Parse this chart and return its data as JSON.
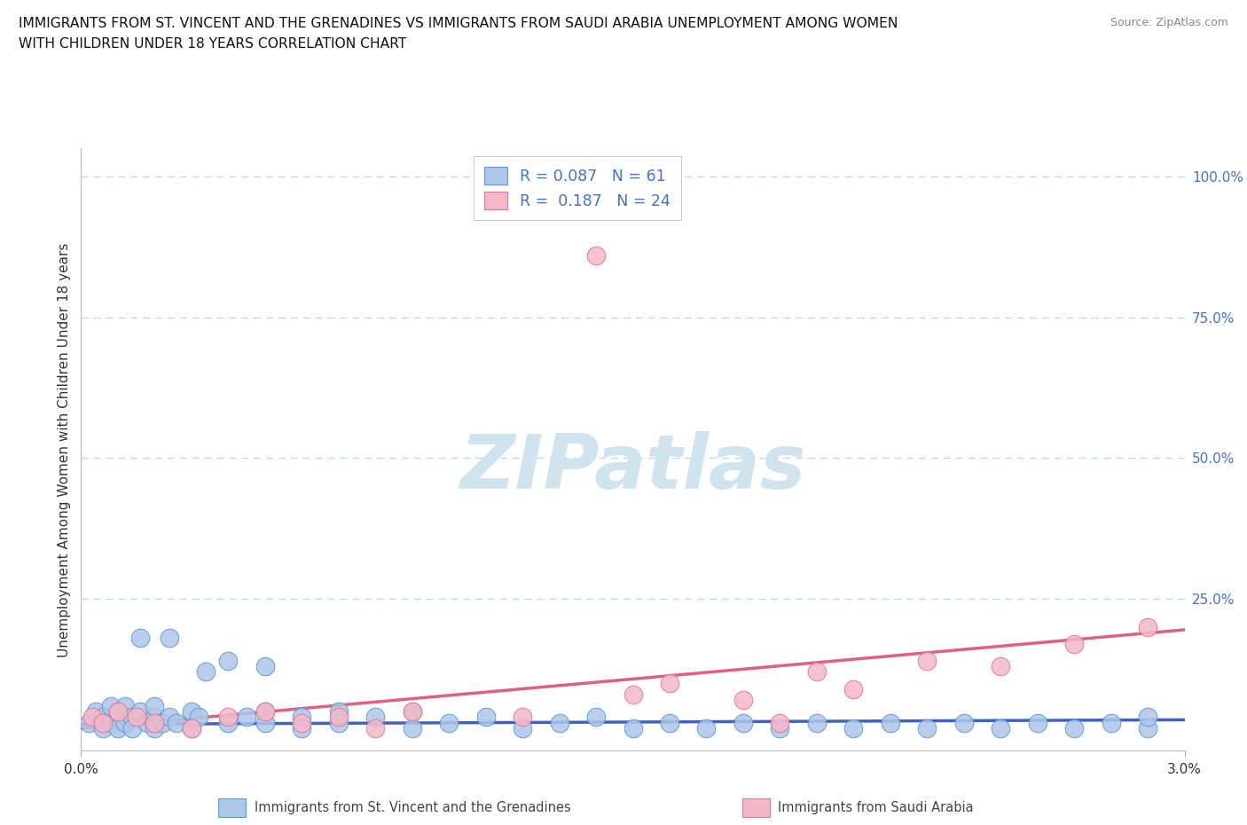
{
  "title_line1": "IMMIGRANTS FROM ST. VINCENT AND THE GRENADINES VS IMMIGRANTS FROM SAUDI ARABIA UNEMPLOYMENT AMONG WOMEN",
  "title_line2": "WITH CHILDREN UNDER 18 YEARS CORRELATION CHART",
  "source": "Source: ZipAtlas.com",
  "ylabel": "Unemployment Among Women with Children Under 18 years",
  "xlim": [
    0.0,
    0.03
  ],
  "ylim": [
    0.0,
    1.0
  ],
  "R_blue": 0.087,
  "N_blue": 61,
  "R_pink": 0.187,
  "N_pink": 24,
  "color_blue_fill": "#aec6e8",
  "color_blue_edge": "#5b9bd5",
  "color_pink_fill": "#f4b8c8",
  "color_pink_edge": "#e07898",
  "line_blue_color": "#4060c8",
  "line_pink_color": "#e06080",
  "watermark_color": "#d0e4f0",
  "bg_color": "#ffffff",
  "grid_color": "#c8d8ea",
  "legend_text_color": "#4472c4",
  "title_color": "#111111",
  "axis_label_color": "#333333",
  "tick_color": "#4472c4",
  "bottom_label_color": "#444444",
  "blue_x": [
    0.0002,
    0.0004,
    0.0006,
    0.0006,
    0.0008,
    0.0008,
    0.001,
    0.001,
    0.001,
    0.0012,
    0.0012,
    0.0014,
    0.0014,
    0.0016,
    0.0016,
    0.0018,
    0.002,
    0.002,
    0.002,
    0.0022,
    0.0024,
    0.0024,
    0.0026,
    0.003,
    0.003,
    0.0032,
    0.0034,
    0.004,
    0.004,
    0.0045,
    0.005,
    0.005,
    0.005,
    0.006,
    0.006,
    0.007,
    0.007,
    0.008,
    0.009,
    0.009,
    0.01,
    0.011,
    0.012,
    0.013,
    0.014,
    0.015,
    0.016,
    0.017,
    0.018,
    0.019,
    0.02,
    0.021,
    0.022,
    0.023,
    0.024,
    0.025,
    0.026,
    0.027,
    0.028,
    0.029,
    0.029
  ],
  "blue_y": [
    0.03,
    0.05,
    0.02,
    0.04,
    0.03,
    0.06,
    0.04,
    0.02,
    0.05,
    0.03,
    0.06,
    0.04,
    0.02,
    0.05,
    0.18,
    0.03,
    0.04,
    0.02,
    0.06,
    0.03,
    0.04,
    0.18,
    0.03,
    0.05,
    0.02,
    0.04,
    0.12,
    0.03,
    0.14,
    0.04,
    0.05,
    0.03,
    0.13,
    0.04,
    0.02,
    0.05,
    0.03,
    0.04,
    0.02,
    0.05,
    0.03,
    0.04,
    0.02,
    0.03,
    0.04,
    0.02,
    0.03,
    0.02,
    0.03,
    0.02,
    0.03,
    0.02,
    0.03,
    0.02,
    0.03,
    0.02,
    0.03,
    0.02,
    0.03,
    0.02,
    0.04
  ],
  "pink_x": [
    0.0003,
    0.0006,
    0.001,
    0.0015,
    0.002,
    0.003,
    0.004,
    0.005,
    0.006,
    0.007,
    0.008,
    0.009,
    0.012,
    0.014,
    0.015,
    0.016,
    0.018,
    0.019,
    0.02,
    0.021,
    0.023,
    0.025,
    0.027,
    0.029
  ],
  "pink_y": [
    0.04,
    0.03,
    0.05,
    0.04,
    0.03,
    0.02,
    0.04,
    0.05,
    0.03,
    0.04,
    0.02,
    0.05,
    0.04,
    0.86,
    0.08,
    0.1,
    0.07,
    0.03,
    0.12,
    0.09,
    0.14,
    0.13,
    0.17,
    0.2
  ],
  "blue_trend_y0": 0.027,
  "blue_trend_y1": 0.035,
  "pink_trend_y0": 0.02,
  "pink_trend_y1": 0.195
}
